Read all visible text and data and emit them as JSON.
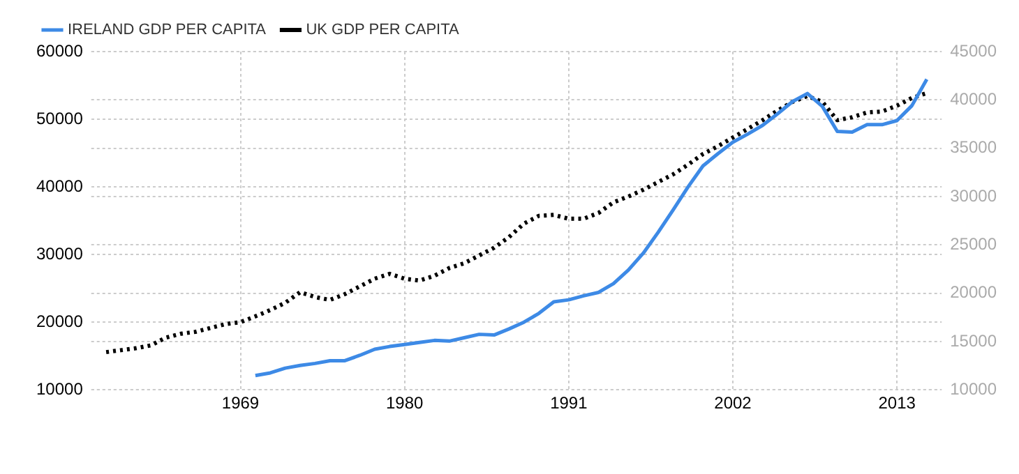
{
  "chart_data": {
    "type": "line",
    "xlim": [
      1959,
      2016
    ],
    "xticks": [
      1969,
      1980,
      1991,
      2002,
      2013
    ],
    "ylim": [
      10000,
      60000
    ],
    "yticks": [
      10000,
      20000,
      30000,
      40000,
      50000,
      60000
    ],
    "y2lim": [
      10000,
      45000
    ],
    "y2ticks": [
      10000,
      15000,
      20000,
      25000,
      30000,
      35000,
      40000,
      45000
    ],
    "grid": true,
    "legend": "top left",
    "marker": "none",
    "series": [
      {
        "name": "IRELAND GDP PER CAPITA",
        "color": "#3d8ae6",
        "line_style": "solid",
        "x": [
          1970,
          1971,
          1972,
          1973,
          1974,
          1975,
          1976,
          1977,
          1978,
          1979,
          1980,
          1981,
          1982,
          1983,
          1984,
          1985,
          1986,
          1987,
          1988,
          1989,
          1990,
          1991,
          1992,
          1993,
          1994,
          1995,
          1996,
          1997,
          1998,
          1999,
          2000,
          2001,
          2002,
          2003,
          2004,
          2005,
          2006,
          2007,
          2008,
          2009,
          2010,
          2011,
          2012,
          2013,
          2014,
          2015
        ],
        "values": [
          12100,
          12500,
          13200,
          13600,
          13900,
          14300,
          14300,
          15100,
          16000,
          16400,
          16700,
          17000,
          17300,
          17200,
          17700,
          18200,
          18100,
          19000,
          20000,
          21300,
          23000,
          23300,
          23900,
          24400,
          25700,
          27700,
          30200,
          33300,
          36600,
          40000,
          43100,
          44900,
          46600,
          47800,
          49100,
          50800,
          52600,
          53800,
          51900,
          48200,
          48100,
          49200,
          49200,
          49800,
          52000,
          55900
        ]
      },
      {
        "name": "UK GDP PER CAPITA",
        "color": "#000000",
        "line_style": "dotted",
        "axis": "y2",
        "x": [
          1960,
          1961,
          1962,
          1963,
          1964,
          1965,
          1966,
          1967,
          1968,
          1969,
          1970,
          1971,
          1972,
          1973,
          1974,
          1975,
          1976,
          1977,
          1978,
          1979,
          1980,
          1981,
          1982,
          1983,
          1984,
          1985,
          1986,
          1987,
          1988,
          1989,
          1990,
          1991,
          1992,
          1993,
          1994,
          1995,
          1996,
          1997,
          1998,
          1999,
          2000,
          2001,
          2002,
          2003,
          2004,
          2005,
          2006,
          2007,
          2008,
          2009,
          2010,
          2011,
          2012,
          2013,
          2014,
          2015
        ],
        "values": [
          13900,
          14100,
          14300,
          14600,
          15400,
          15800,
          16000,
          16400,
          16800,
          17000,
          17600,
          18250,
          19000,
          20100,
          19600,
          19300,
          19900,
          20700,
          21500,
          22000,
          21500,
          21300,
          21800,
          22600,
          23100,
          23900,
          24700,
          25800,
          27200,
          28000,
          28100,
          27700,
          27700,
          28300,
          29400,
          30000,
          30700,
          31500,
          32300,
          33300,
          34400,
          35200,
          36100,
          37000,
          37900,
          38900,
          39800,
          40400,
          39800,
          37900,
          38200,
          38700,
          38800,
          39400,
          40200,
          40700
        ]
      }
    ]
  }
}
